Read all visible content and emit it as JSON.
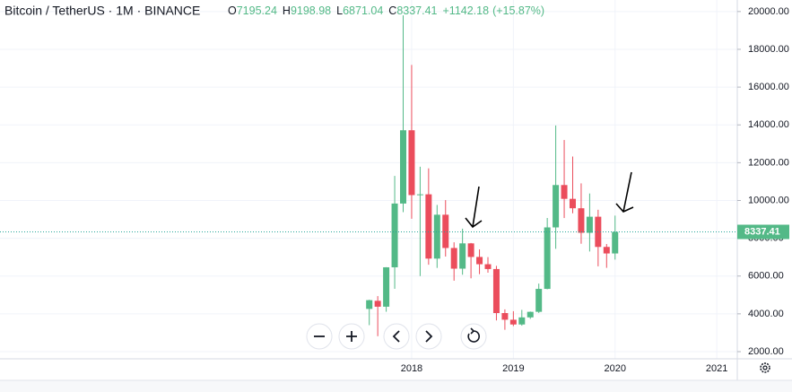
{
  "chart_data": {
    "type": "candlestick",
    "title": "Bitcoin / TetherUS · 1M · BINANCE",
    "ohlc_labels": [
      "O",
      "H",
      "L",
      "C"
    ],
    "change": "+1142.18",
    "change_pct": "(+15.87%)",
    "categories": [
      null,
      null,
      null,
      null,
      null,
      "2018",
      null,
      null,
      null,
      null,
      null,
      null,
      null,
      null,
      null,
      null,
      null,
      "2019",
      null,
      null,
      null,
      null,
      null,
      null,
      null,
      null,
      null,
      null,
      null,
      "2020"
    ],
    "open": [
      4261,
      4689,
      4378,
      6463,
      9838,
      13716,
      10285,
      10326,
      6923,
      9246,
      7485,
      6391,
      7730,
      7011,
      6626,
      6371,
      4041,
      3689,
      3437,
      3813,
      4106,
      5321,
      8574,
      10817,
      10086,
      9588,
      8289,
      9140,
      7541,
      7195.24
    ],
    "high": [
      4745,
      4939,
      6470,
      11300,
      19798,
      17176,
      11786,
      11700,
      9765,
      10020,
      7786,
      8507,
      7750,
      7410,
      7000,
      6540,
      4236,
      4140,
      4210,
      4121,
      5600,
      9074,
      13970,
      13200,
      12325,
      10905,
      10370,
      9509,
      7695,
      9198.98
    ],
    "low": [
      3400,
      2817,
      4110,
      5325,
      9380,
      9035,
      6000,
      6600,
      6430,
      7032,
      5755,
      6070,
      5880,
      6100,
      6180,
      3652,
      3156,
      3349,
      3373,
      3733,
      4048,
      5300,
      7444,
      9070,
      9320,
      7710,
      7300,
      6515,
      6435,
      6871.04
    ],
    "close": [
      4724,
      4378,
      6463,
      9838,
      13716,
      10285,
      10326,
      6923,
      9246,
      7485,
      6391,
      7730,
      7011,
      6626,
      6371,
      4041,
      3689,
      3437,
      3813,
      4106,
      5321,
      8574,
      10817,
      10086,
      9588,
      8289,
      9140,
      7541,
      7195.24,
      8337.41
    ],
    "up_color": "#53b987",
    "down_color": "#eb4d5c",
    "xticks": [
      "2018",
      "2019",
      "2020",
      "2021"
    ],
    "ylim": [
      1620,
      20610
    ],
    "yticks": [
      {
        "value": 2000,
        "label": "2000.00"
      },
      {
        "value": 4000,
        "label": "4000.00"
      },
      {
        "value": 6000,
        "label": "6000.00"
      },
      {
        "value": 8000,
        "label": "8000.00"
      },
      {
        "value": 10000,
        "label": "10000.00"
      },
      {
        "value": 12000,
        "label": "12000.00"
      },
      {
        "value": 14000,
        "label": "14000.00"
      },
      {
        "value": 16000,
        "label": "16000.00"
      },
      {
        "value": 18000,
        "label": "18000.00"
      },
      {
        "value": 20000,
        "label": "20000.00"
      }
    ],
    "grid": true
  }
}
